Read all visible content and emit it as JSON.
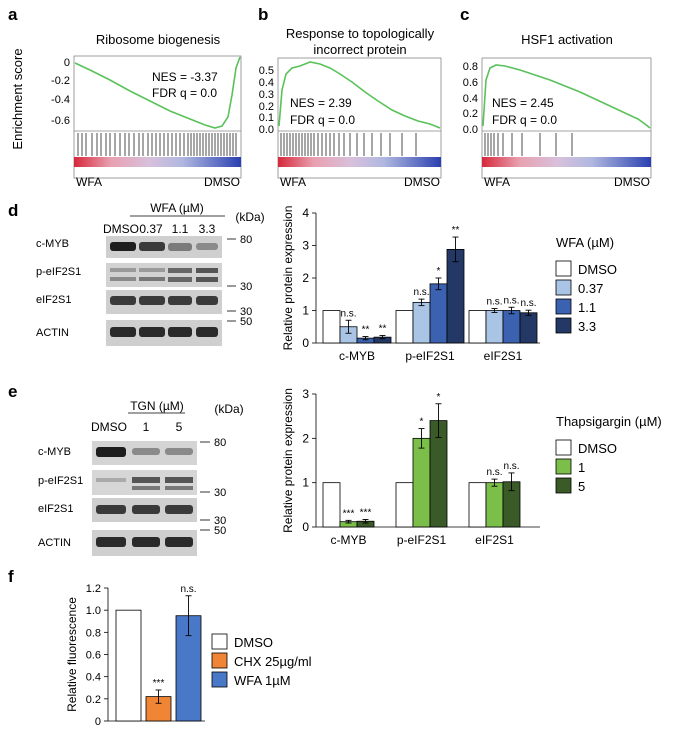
{
  "panels": {
    "a": "a",
    "b": "b",
    "c": "c",
    "d": "d",
    "e": "e",
    "f": "f"
  },
  "gsea": [
    {
      "title_lines": [
        "Ribosome biogenesis"
      ],
      "ylabel": "Enrichment score",
      "yticks": [
        "0",
        "-0.2",
        "-0.4",
        "-0.6"
      ],
      "nes": "NES = -3.37",
      "fdr": "FDR q = 0.0",
      "left_label": "WFA",
      "right_label": "DMSO"
    },
    {
      "title_lines": [
        "Response to topologically",
        "incorrect protein"
      ],
      "yticks": [
        "0.5",
        "0.4",
        "0.3",
        "0.2",
        "0.1",
        "0.0"
      ],
      "nes": "NES = 2.39",
      "fdr": "FDR q = 0.0",
      "left_label": "WFA",
      "right_label": "DMSO"
    },
    {
      "title_lines": [
        "HSF1 activation"
      ],
      "yticks": [
        "0.8",
        "0.6",
        "0.4",
        "0.2",
        "0.0"
      ],
      "nes": "NES = 2.45",
      "fdr": "FDR q = 0.0",
      "left_label": "WFA",
      "right_label": "DMSO"
    }
  ],
  "blot_d": {
    "treatment": "WFA (µM)",
    "kda": "(kDa)",
    "lanes": [
      "DMSO",
      "0.37",
      "1.1",
      "3.3"
    ],
    "rows": [
      "c-MYB",
      "p-eIF2S1",
      "eIF2S1",
      "ACTIN"
    ],
    "markers": [
      "80",
      "30",
      "30",
      "50"
    ]
  },
  "blot_e": {
    "treatment": "TGN (µM)",
    "kda": "(kDa)",
    "lanes": [
      "DMSO",
      "1",
      "5"
    ],
    "rows": [
      "c-MYB",
      "p-eIF2S1",
      "eIF2S1",
      "ACTIN"
    ],
    "markers": [
      "80",
      "30",
      "30",
      "50"
    ]
  },
  "chart_data": [
    {
      "type": "bar",
      "ylabel": "Relative protein expression",
      "ylim": [
        0,
        4
      ],
      "yticks": [
        "0",
        "1",
        "2",
        "3",
        "4"
      ],
      "categories": [
        "c-MYB",
        "p-eIF2S1",
        "eIF2S1"
      ],
      "legend_title": "WFA (µM)",
      "series": [
        {
          "name": "DMSO",
          "color": "#ffffff",
          "values": [
            1,
            1,
            1
          ],
          "errors": [
            0,
            0,
            0
          ],
          "sig": [
            "",
            "",
            ""
          ]
        },
        {
          "name": "0.37",
          "color": "#a9c4e4",
          "values": [
            0.5,
            1.25,
            1.0
          ],
          "errors": [
            0.2,
            0.1,
            0.06
          ],
          "sig": [
            "n.s.",
            "n.s.",
            "n.s."
          ]
        },
        {
          "name": "1.1",
          "color": "#3b62b0",
          "values": [
            0.15,
            1.82,
            1.0
          ],
          "errors": [
            0.05,
            0.18,
            0.1
          ],
          "sig": [
            "**",
            "*",
            "n.s."
          ]
        },
        {
          "name": "3.3",
          "color": "#233864",
          "values": [
            0.18,
            2.88,
            0.93
          ],
          "errors": [
            0.05,
            0.38,
            0.08
          ],
          "sig": [
            "**",
            "**",
            "n.s."
          ]
        }
      ]
    },
    {
      "type": "bar",
      "ylabel": "Relative protein expression",
      "ylim": [
        0,
        3
      ],
      "yticks": [
        "0",
        "1",
        "2",
        "3"
      ],
      "categories": [
        "c-MYB",
        "p-eIF2S1",
        "eIF2S1"
      ],
      "legend_title": "Thapsigargin (µM)",
      "series": [
        {
          "name": "DMSO",
          "color": "#ffffff",
          "values": [
            1,
            1,
            1
          ],
          "errors": [
            0,
            0,
            0
          ],
          "sig": [
            "",
            "",
            ""
          ]
        },
        {
          "name": "1",
          "color": "#7bbf4a",
          "values": [
            0.12,
            2.0,
            1.0
          ],
          "errors": [
            0.03,
            0.22,
            0.08
          ],
          "sig": [
            "***",
            "*",
            "n.s."
          ]
        },
        {
          "name": "5",
          "color": "#3a5a28",
          "values": [
            0.13,
            2.4,
            1.02
          ],
          "errors": [
            0.04,
            0.38,
            0.2
          ],
          "sig": [
            "***",
            "*",
            "n.s."
          ]
        }
      ]
    },
    {
      "type": "bar",
      "ylabel": "Relative fluorescence",
      "ylim": [
        0,
        1.2
      ],
      "yticks": [
        "0",
        "0.2",
        "0.4",
        "0.6",
        "0.8",
        "1.0",
        "1.2"
      ],
      "categories": [
        "DMSO",
        "CHX 25µg/ml",
        "WFA 1µM"
      ],
      "series": [
        {
          "name": "Relative fluorescence",
          "values": [
            1.0,
            0.22,
            0.95
          ],
          "errors": [
            0,
            0.06,
            0.18
          ],
          "colors": [
            "#ffffff",
            "#f08535",
            "#4a78c8"
          ],
          "sig": [
            "",
            "***",
            "n.s."
          ]
        }
      ],
      "legend": [
        "DMSO",
        "CHX 25µg/ml",
        "WFA 1µM"
      ]
    }
  ]
}
